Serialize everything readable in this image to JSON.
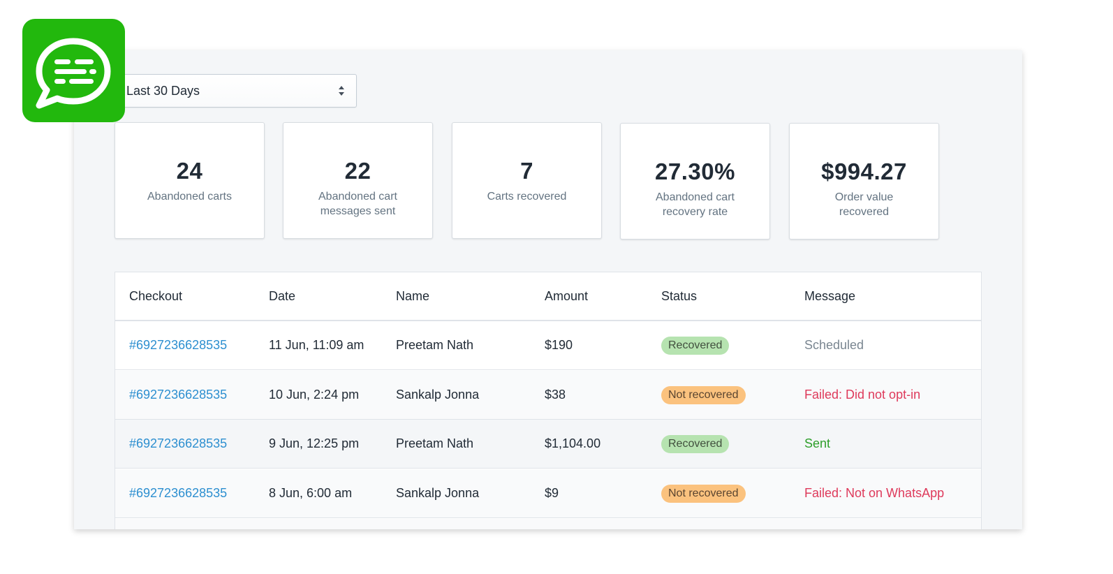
{
  "app_icon": {
    "name": "chat-bubble-icon",
    "color": "#22b80d"
  },
  "date_filter": {
    "selected": "Last 30 Days"
  },
  "stats": [
    {
      "value": "24",
      "label": "Abandoned carts"
    },
    {
      "value": "22",
      "label": "Abandoned cart messages sent"
    },
    {
      "value": "7",
      "label": "Carts recovered"
    },
    {
      "value": "27.30%",
      "label": "Abandoned cart recovery rate"
    },
    {
      "value": "$994.27",
      "label": "Order value recovered"
    }
  ],
  "table": {
    "headers": [
      "Checkout",
      "Date",
      "Name",
      "Amount",
      "Status",
      "Message"
    ],
    "rows": [
      {
        "checkout": "#6927236628535",
        "date": "11 Jun, 11:09 am",
        "name": "Preetam Nath",
        "amount": "$190",
        "status": "Recovered",
        "status_kind": "recovered",
        "message": "Scheduled",
        "message_kind": "neutral"
      },
      {
        "checkout": "#6927236628535",
        "date": "10 Jun, 2:24 pm",
        "name": "Sankalp Jonna",
        "amount": "$38",
        "status": "Not recovered",
        "status_kind": "not-recovered",
        "message": "Failed: Did not opt-in",
        "message_kind": "failed"
      },
      {
        "checkout": "#6927236628535",
        "date": "9 Jun, 12:25 pm",
        "name": "Preetam Nath",
        "amount": "$1,104.00",
        "status": "Recovered",
        "status_kind": "recovered",
        "message": "Sent",
        "message_kind": "sent"
      },
      {
        "checkout": "#6927236628535",
        "date": "8 Jun, 6:00 am",
        "name": "Sankalp Jonna",
        "amount": "$9",
        "status": "Not recovered",
        "status_kind": "not-recovered",
        "message": "Failed: Not on WhatsApp",
        "message_kind": "failed"
      }
    ]
  },
  "colors": {
    "link": "#2d8fd0",
    "badge_recovered": "#b6e3b0",
    "badge_not_recovered": "#fbc27e",
    "message_failed": "#de3a5b",
    "message_sent": "#2d9e2a",
    "message_neutral": "#7a8691"
  }
}
